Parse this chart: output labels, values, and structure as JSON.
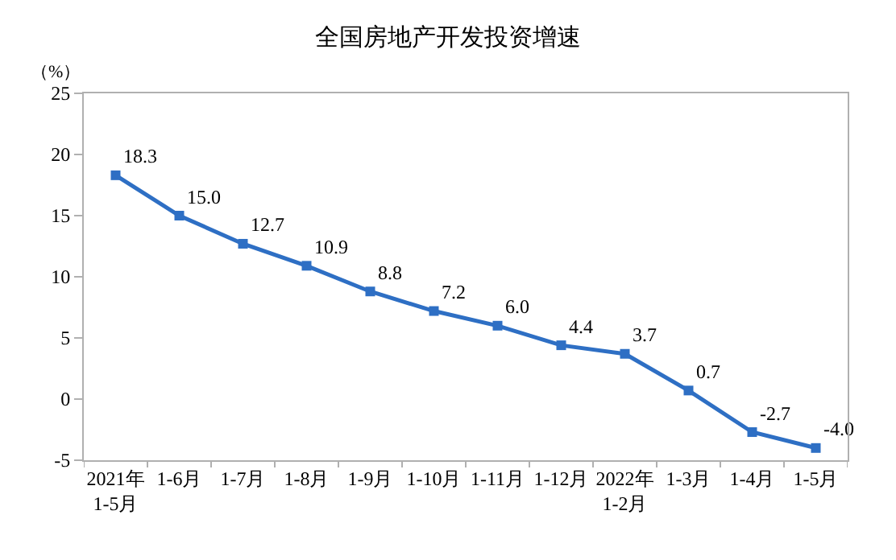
{
  "chart_data": {
    "type": "line",
    "title": "全国房地产开发投资增速",
    "ylabel": "（%）",
    "categories": [
      "2021年\n1-5月",
      "1-6月",
      "1-7月",
      "1-8月",
      "1-9月",
      "1-10月",
      "1-11月",
      "1-12月",
      "2022年\n1-2月",
      "1-3月",
      "1-4月",
      "1-5月"
    ],
    "series": [
      {
        "color": "#2e6fc4",
        "values": [
          18.3,
          15.0,
          12.7,
          10.9,
          8.8,
          7.2,
          6.0,
          4.4,
          3.7,
          0.7,
          -2.7,
          -4.0
        ]
      }
    ],
    "value_labels": [
      "18.3",
      "15.0",
      "12.7",
      "10.9",
      "8.8",
      "7.2",
      "6.0",
      "4.4",
      "3.7",
      "0.7",
      "-2.7",
      "-4.0"
    ],
    "ylim": [
      -5,
      25
    ],
    "yticks": [
      -5,
      0,
      5,
      10,
      15,
      20,
      25
    ],
    "marker": "square",
    "line_style": "solid"
  }
}
